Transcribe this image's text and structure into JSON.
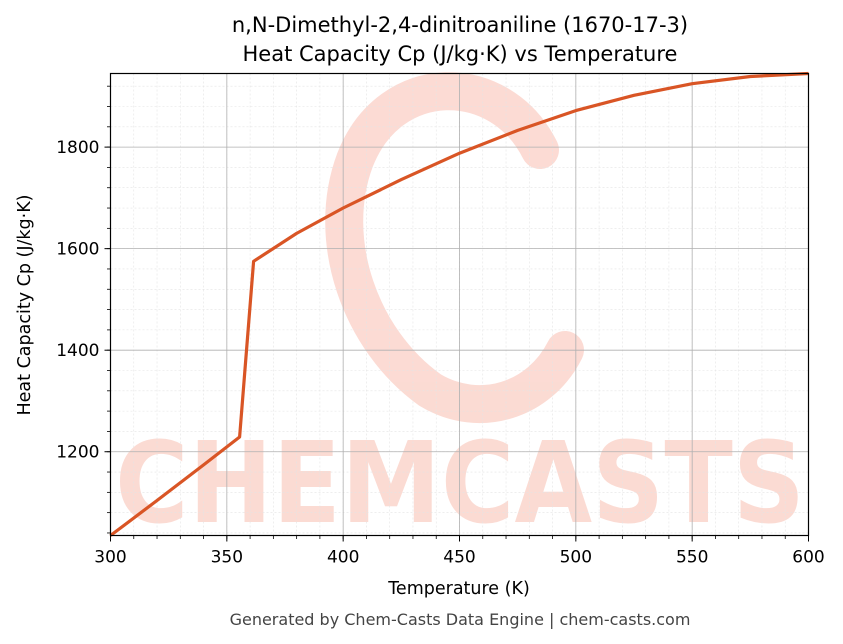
{
  "chart_data": {
    "type": "line",
    "title": "n,N-Dimethyl-2,4-dinitroaniline (1670-17-3)",
    "subtitle": "Heat Capacity Cp (J/kg·K) vs Temperature",
    "xlabel": "Temperature (K)",
    "ylabel": "Heat Capacity Cp (J/kg·K)",
    "xlim": [
      300,
      600
    ],
    "ylim": [
      1035,
      1945
    ],
    "x_ticks": [
      300,
      350,
      400,
      450,
      500,
      550,
      600
    ],
    "y_ticks": [
      1200,
      1400,
      1600,
      1800
    ],
    "grid": true,
    "line_color": "#d95525",
    "series": [
      {
        "x": [
          300,
          320,
          340,
          355.5,
          361.5,
          380,
          400,
          425,
          450,
          475,
          500,
          525,
          550,
          575,
          600
        ],
        "values": [
          1035,
          1104,
          1174,
          1229,
          1575,
          1630,
          1680,
          1736,
          1788,
          1833,
          1872,
          1902,
          1925,
          1939,
          1945
        ]
      }
    ]
  },
  "watermark": {
    "text": "CHEMCASTS",
    "color": "#fbd5cc"
  },
  "footer": "Generated by Chem-Casts Data Engine | chem-casts.com"
}
